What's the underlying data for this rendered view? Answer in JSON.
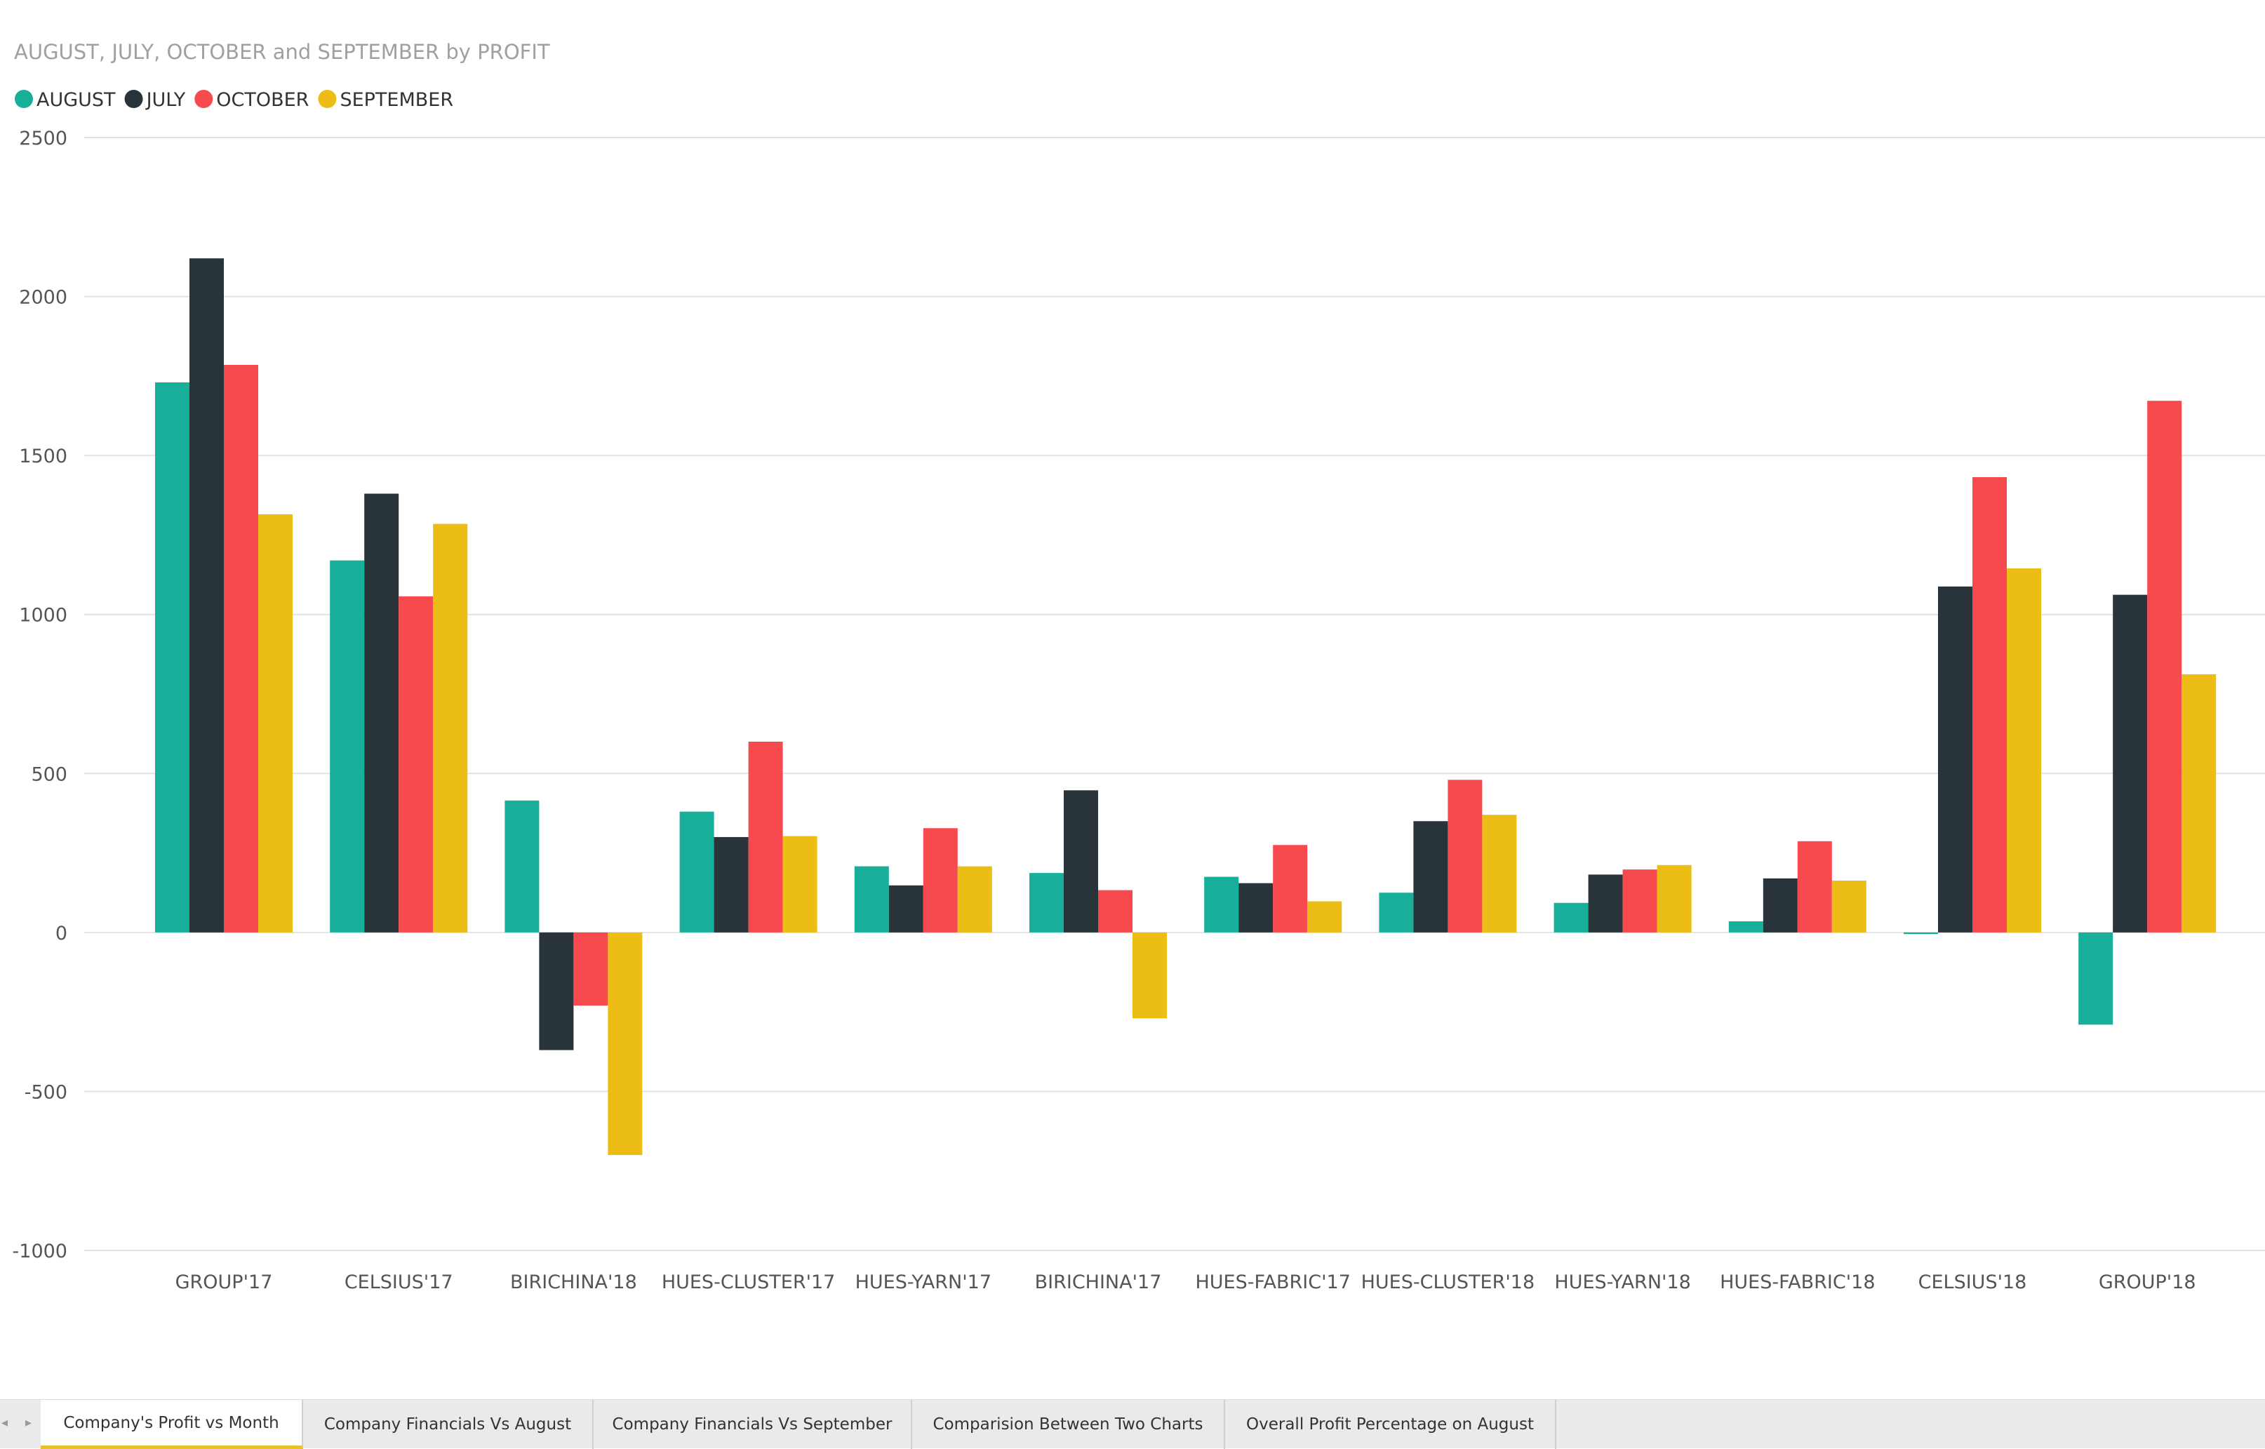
{
  "chart_data": {
    "type": "bar",
    "title": "AUGUST, JULY, OCTOBER and SEPTEMBER by PROFIT",
    "xlabel": "",
    "ylabel": "",
    "ylim": [
      -1000,
      2500
    ],
    "yticks": [
      2500,
      2000,
      1500,
      1000,
      500,
      0,
      -500,
      -1000
    ],
    "grid": true,
    "legend_position": "top-left",
    "categories": [
      "GROUP'17",
      "CELSIUS'17",
      "BIRICHINA'18",
      "HUES-CLUSTER'17",
      "HUES-YARN'17",
      "BIRICHINA'17",
      "HUES-FABRIC'17",
      "HUES-CLUSTER'18",
      "HUES-YARN'18",
      "HUES-FABRIC'18",
      "CELSIUS'18",
      "GROUP'18"
    ],
    "series": [
      {
        "name": "AUGUST",
        "color": "#17ae9a",
        "values": [
          1730,
          1170,
          415,
          380,
          208,
          187,
          175,
          125,
          93,
          35,
          -5,
          -290
        ]
      },
      {
        "name": "JULY",
        "color": "#283439",
        "values": [
          2120,
          1380,
          -370,
          300,
          148,
          447,
          155,
          350,
          182,
          170,
          1088,
          1062
        ]
      },
      {
        "name": "OCTOBER",
        "color": "#f64a4f",
        "values": [
          1785,
          1057,
          -230,
          600,
          328,
          133,
          275,
          480,
          198,
          287,
          1432,
          1672
        ]
      },
      {
        "name": "SEPTEMBER",
        "color": "#ebbd15",
        "values": [
          1315,
          1285,
          -700,
          303,
          208,
          -270,
          98,
          370,
          212,
          163,
          1145,
          812
        ]
      }
    ]
  },
  "tabs": [
    {
      "label": "Company's Profit vs Month",
      "active": true
    },
    {
      "label": "Company Financials Vs August",
      "active": false
    },
    {
      "label": "Company Financials Vs September",
      "active": false
    },
    {
      "label": "Comparision Between Two Charts",
      "active": false
    },
    {
      "label": "Overall Profit Percentage on August",
      "active": false
    }
  ],
  "nav": {
    "prev_icon": "chevron-left-icon",
    "next_icon": "chevron-right-icon"
  },
  "nav_glyphs": {
    "prev": "◂",
    "next": "▸"
  }
}
